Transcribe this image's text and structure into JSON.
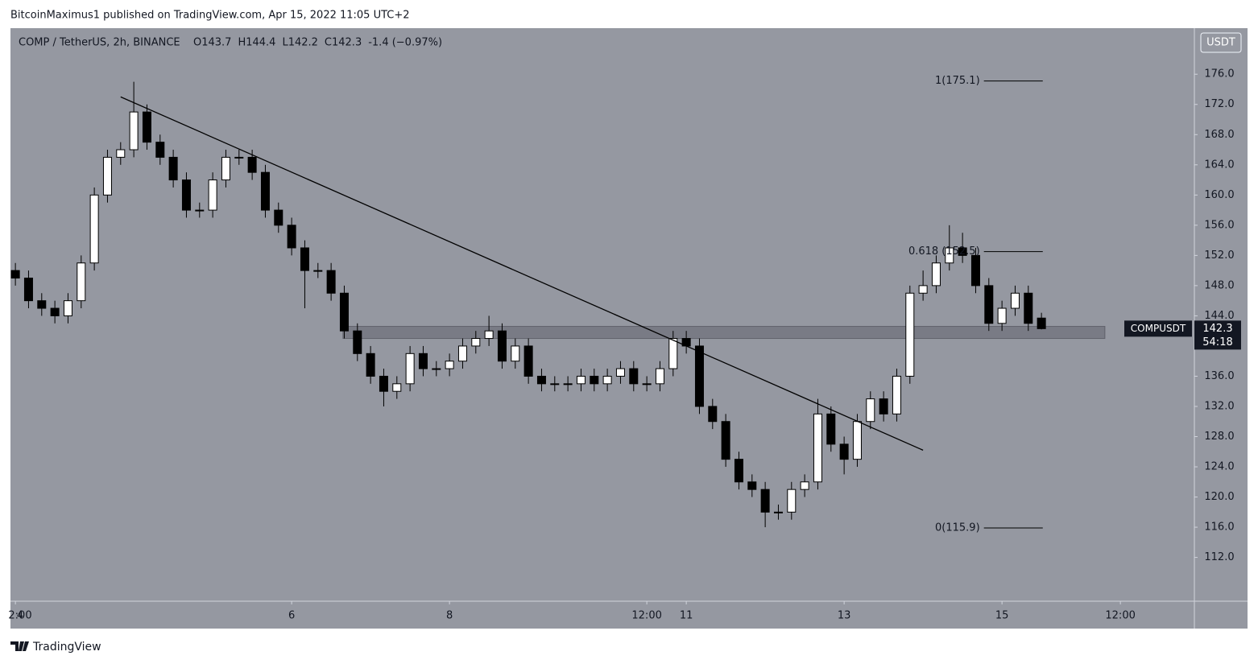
{
  "header": {
    "publisher": "BitcoinMaximus1 published on TradingView.com, Apr 15, 2022 11:05 UTC+2"
  },
  "footer": {
    "brand": "TradingView"
  },
  "chart_data": {
    "type": "candlestick",
    "title": "COMP / TetherUS, 2h, BINANCE",
    "ohlc_text": [
      "O143.7",
      "H144.4",
      "L142.2",
      "C142.3",
      "-1.4 (−0.97%)"
    ],
    "currency": "USDT",
    "symbol_tag": "COMPUSDT",
    "price_tag": "142.3",
    "countdown": "54:18",
    "last_price": 142.3,
    "x": [
      12,
      16,
      20,
      24,
      28,
      32,
      36,
      40,
      44,
      48,
      52,
      56,
      60,
      64,
      68,
      72,
      76,
      80,
      84,
      88,
      92,
      96,
      100,
      104,
      108,
      112,
      116,
      120,
      124,
      128,
      132,
      136,
      140,
      144,
      148,
      152,
      156,
      160,
      164,
      168,
      172,
      176,
      180,
      184,
      188,
      192,
      196,
      200,
      204,
      208,
      212,
      216,
      220,
      224,
      228,
      232,
      236,
      240,
      244,
      248,
      252,
      256,
      260,
      264,
      268,
      272,
      276,
      280,
      284,
      288,
      292,
      296,
      300,
      304,
      308,
      312,
      316,
      320,
      324
    ],
    "open": [
      150,
      149,
      146,
      145,
      144,
      146,
      151,
      160,
      165,
      166,
      171,
      167,
      165,
      162,
      158,
      158,
      162,
      165,
      165,
      163,
      158,
      156,
      153,
      150,
      150,
      147,
      142,
      139,
      136,
      134,
      135,
      139,
      137,
      137,
      138,
      140,
      141,
      142,
      138,
      140,
      136,
      135,
      135,
      135,
      136,
      135,
      136,
      137,
      135,
      135,
      137,
      141,
      140,
      132,
      130,
      125,
      122,
      121,
      118,
      118,
      121,
      122,
      131,
      127,
      125,
      130,
      133,
      131,
      136,
      147,
      148,
      151,
      153,
      152,
      148,
      143,
      145,
      147,
      143.7
    ],
    "high": [
      151,
      150,
      147,
      146,
      147,
      152,
      161,
      166,
      167,
      175,
      172,
      168,
      166,
      163,
      159,
      163,
      166,
      166,
      166,
      164,
      159,
      157,
      154,
      151,
      151,
      148,
      143,
      140,
      137,
      136,
      140,
      140,
      138,
      139,
      141,
      142,
      144,
      143,
      141,
      141,
      137,
      136,
      136,
      137,
      137,
      137,
      138,
      138,
      136,
      138,
      142,
      142,
      141,
      133,
      131,
      126,
      123,
      122,
      119,
      122,
      123,
      133,
      132,
      128,
      131,
      134,
      134,
      137,
      148,
      150,
      152,
      156,
      155,
      153,
      149,
      146,
      148,
      148,
      144.4
    ],
    "low": [
      148,
      145,
      144,
      143,
      143,
      145,
      150,
      159,
      164,
      165,
      166,
      164,
      161,
      157,
      157,
      157,
      161,
      164,
      162,
      157,
      155,
      152,
      145,
      149,
      146,
      141,
      138,
      135,
      132,
      133,
      134,
      136,
      136,
      136,
      137,
      139,
      140,
      137,
      137,
      135,
      134,
      134,
      134,
      134,
      134,
      134,
      135,
      134,
      134,
      134,
      136,
      139,
      131,
      129,
      124,
      121,
      120,
      116,
      117,
      117,
      120,
      121,
      126,
      123,
      124,
      129,
      130,
      130,
      135,
      146,
      147,
      150,
      151,
      147,
      142,
      142,
      144,
      142,
      142.2
    ],
    "close": [
      149,
      146,
      145,
      144,
      146,
      151,
      160,
      165,
      166,
      171,
      167,
      165,
      162,
      158,
      158,
      162,
      165,
      165,
      163,
      158,
      156,
      153,
      150,
      150,
      147,
      142,
      139,
      136,
      134,
      135,
      139,
      137,
      137,
      138,
      140,
      141,
      142,
      138,
      140,
      136,
      135,
      135,
      135,
      136,
      135,
      136,
      137,
      135,
      135,
      137,
      141,
      140,
      132,
      130,
      125,
      122,
      121,
      118,
      118,
      121,
      122,
      131,
      127,
      125,
      130,
      133,
      131,
      136,
      147,
      148,
      151,
      153,
      152,
      148,
      143,
      145,
      147,
      143,
      142.3
    ],
    "up_color": "#ffffff",
    "down_color": "#000000",
    "trendline": {
      "x": [
        44,
        288
      ],
      "y": [
        173,
        126.2
      ]
    },
    "zone": {
      "x": [
        111.6,
        343.3
      ],
      "y": [
        141,
        142.6
      ]
    },
    "fib": {
      "x": [
        306.5,
        324.4
      ],
      "levels": [
        175.1,
        152.5,
        115.9
      ],
      "labels": [
        "1(175.1)",
        "0.618 (152.5)",
        "0(115.9)"
      ]
    },
    "xlim": [
      10.5,
      370.5
    ],
    "xticks": [
      {
        "value": 12,
        "label": "2:00"
      },
      4,
      {
        "value": 96,
        "label": "6"
      },
      {
        "value": 144,
        "label": "8"
      },
      {
        "value": 204,
        "label": "12:00"
      },
      {
        "value": 216,
        "label": "11"
      },
      {
        "value": 264,
        "label": "13"
      },
      {
        "value": 312,
        "label": "15"
      },
      {
        "value": 348,
        "label": "12:00"
      }
    ],
    "ylim": [
      106.2,
      182.1
    ],
    "yticks": [
      {
        "value": 112,
        "label": "112.0"
      },
      {
        "value": 116,
        "label": "116.0"
      },
      {
        "value": 120,
        "label": "120.0"
      },
      {
        "value": 124,
        "label": "124.0"
      },
      {
        "value": 128,
        "label": "128.0"
      },
      {
        "value": 132,
        "label": "132.0"
      },
      {
        "value": 136,
        "label": "136.0"
      },
      {
        "value": 140,
        "label": "140.0"
      },
      {
        "value": 144,
        "label": "144.0"
      },
      {
        "value": 148,
        "label": "148.0"
      },
      {
        "value": 152,
        "label": "152.0"
      },
      {
        "value": 156,
        "label": "156.0"
      },
      {
        "value": 160,
        "label": "160.0"
      },
      {
        "value": 164,
        "label": "164.0"
      },
      {
        "value": 168,
        "label": "168.0"
      },
      {
        "value": 172,
        "label": "172.0"
      },
      {
        "value": 176,
        "label": "176.0"
      }
    ]
  }
}
